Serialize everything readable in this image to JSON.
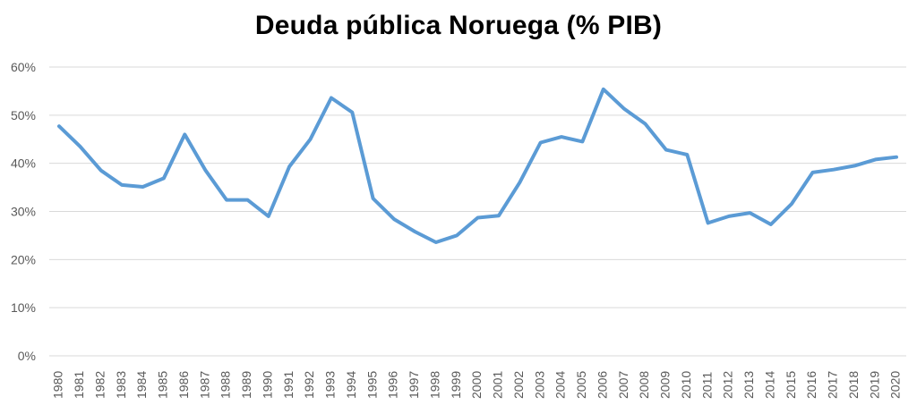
{
  "chart_data": {
    "type": "line",
    "title": "Deuda pública Noruega (% PIB)",
    "xlabel": "",
    "ylabel": "",
    "ylim": [
      0,
      60
    ],
    "y_ticks": [
      "0%",
      "10%",
      "20%",
      "30%",
      "40%",
      "50%",
      "60%"
    ],
    "grid": true,
    "legend": "none",
    "line_color": "#5b9bd5",
    "categories": [
      "1980",
      "1981",
      "1982",
      "1983",
      "1984",
      "1985",
      "1986",
      "1987",
      "1988",
      "1989",
      "1990",
      "1991",
      "1992",
      "1993",
      "1994",
      "1995",
      "1996",
      "1997",
      "1998",
      "1999",
      "2000",
      "2001",
      "2002",
      "2003",
      "2004",
      "2005",
      "2006",
      "2007",
      "2008",
      "2009",
      "2010",
      "2011",
      "2012",
      "2013",
      "2014",
      "2015",
      "2016",
      "2017",
      "2018",
      "2019",
      "2020"
    ],
    "series": [
      {
        "values": [
          47.7,
          43.5,
          38.5,
          35.5,
          35.1,
          36.9,
          46.0,
          38.5,
          32.4,
          32.4,
          29.0,
          39.3,
          45.0,
          53.6,
          50.6,
          32.7,
          28.4,
          25.8,
          23.6,
          25.0,
          28.7,
          29.1,
          36.0,
          44.3,
          45.5,
          44.5,
          55.4,
          51.3,
          48.2,
          42.8,
          41.8,
          27.6,
          29.0,
          29.7,
          27.3,
          31.6,
          38.1,
          38.7,
          39.5,
          40.8,
          41.3
        ]
      }
    ]
  }
}
